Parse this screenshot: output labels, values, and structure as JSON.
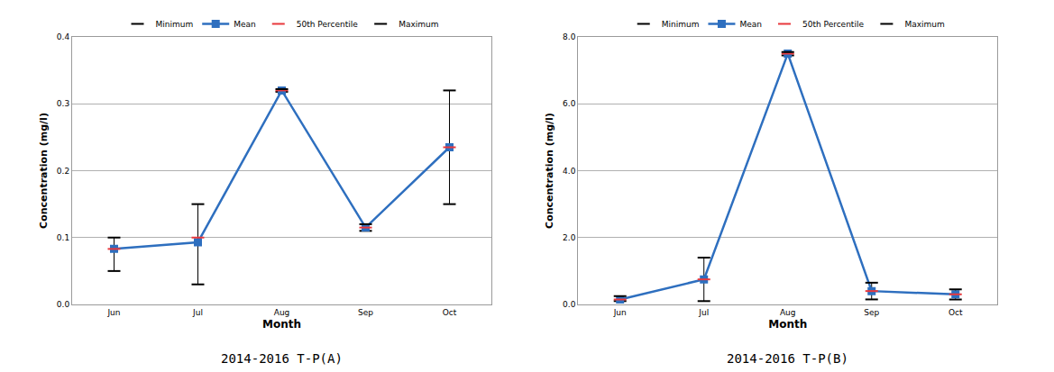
{
  "chart_data": [
    {
      "type": "line",
      "title": "2014-2016 T-P(A)",
      "x_label": "Month",
      "y_label": "Concentration (mg/l)",
      "categories": [
        "Jun",
        "Jul",
        "Aug",
        "Sep",
        "Oct"
      ],
      "series": [
        {
          "name": "Minimum",
          "color": "#000000",
          "marker": "dash",
          "line_style": "none",
          "values": [
            0.05,
            0.03,
            0.318,
            0.11,
            0.15
          ]
        },
        {
          "name": "Mean",
          "color": "#2e6fbf",
          "marker": "square",
          "line_style": "solid",
          "values": [
            0.083,
            0.093,
            0.32,
            0.115,
            0.235
          ]
        },
        {
          "name": "50th Percentile",
          "color": "#e8383d",
          "marker": "dash",
          "line_style": "none",
          "values": [
            0.083,
            0.1,
            0.32,
            0.115,
            0.235
          ]
        },
        {
          "name": "Maximum",
          "color": "#000000",
          "marker": "dash",
          "line_style": "none",
          "values": [
            0.1,
            0.15,
            0.322,
            0.12,
            0.32
          ]
        }
      ],
      "ylim": [
        0,
        0.4
      ],
      "yticks": [
        {
          "value": 0,
          "label": "0.0"
        },
        0.1,
        0.2,
        0.3,
        0.4
      ],
      "grid": true,
      "legend": "top"
    },
    {
      "type": "line",
      "title": "2014-2016 T-P(B)",
      "x_label": "Month",
      "y_label": "Concentration (mg/l)",
      "categories": [
        "Jun",
        "Jul",
        "Aug",
        "Sep",
        "Oct"
      ],
      "series": [
        {
          "name": "Minimum",
          "color": "#000000",
          "marker": "dash",
          "line_style": "none",
          "values": [
            0.1,
            0.1,
            7.45,
            0.15,
            0.15
          ]
        },
        {
          "name": "Mean",
          "color": "#2e6fbf",
          "marker": "square",
          "line_style": "solid",
          "values": [
            0.15,
            0.75,
            7.5,
            0.4,
            0.3
          ]
        },
        {
          "name": "50th Percentile",
          "color": "#e8383d",
          "marker": "dash",
          "line_style": "none",
          "values": [
            0.15,
            0.75,
            7.5,
            0.4,
            0.3
          ]
        },
        {
          "name": "Maximum",
          "color": "#000000",
          "marker": "dash",
          "line_style": "none",
          "values": [
            0.25,
            1.4,
            7.55,
            0.65,
            0.45
          ]
        }
      ],
      "ylim": [
        0,
        8
      ],
      "yticks": [
        {
          "value": 0,
          "label": "0.0"
        },
        {
          "value": 2,
          "label": "2.0"
        },
        {
          "value": 4,
          "label": "4.0"
        },
        {
          "value": 6,
          "label": "6.0"
        },
        {
          "value": 8,
          "label": "8.0"
        }
      ],
      "grid": true,
      "legend": "top"
    }
  ]
}
